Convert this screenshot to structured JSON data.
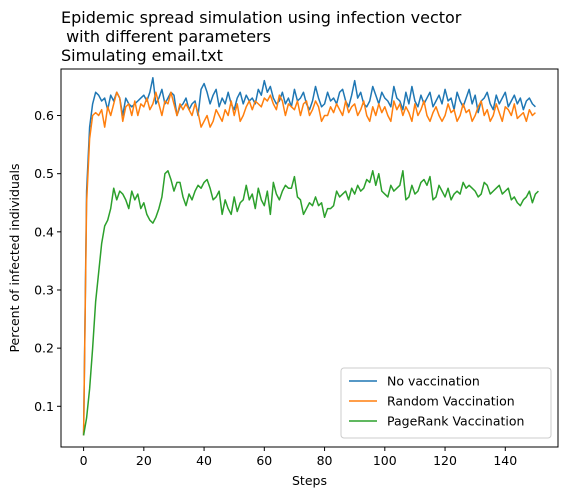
{
  "chart_data": {
    "type": "line",
    "title_lines": [
      "Epidemic spread simulation using infection vector",
      " with different parameters",
      "Simulating email.txt"
    ],
    "xlabel": "Steps",
    "ylabel": "Percent of infected individuals",
    "xlim": [
      -7.5,
      157.5
    ],
    "ylim": [
      0.03,
      0.68
    ],
    "xticks": [
      0,
      20,
      40,
      60,
      80,
      100,
      120,
      140
    ],
    "yticks": [
      0.1,
      0.2,
      0.3,
      0.4,
      0.5,
      0.6
    ],
    "grid": false,
    "legend_position": "lower-right",
    "series": [
      {
        "name": "No vaccination",
        "color": "#1f77b4",
        "values": [
          0.05,
          0.47,
          0.58,
          0.62,
          0.64,
          0.635,
          0.625,
          0.63,
          0.61,
          0.635,
          0.625,
          0.64,
          0.63,
          0.6,
          0.63,
          0.62,
          0.615,
          0.62,
          0.625,
          0.63,
          0.635,
          0.625,
          0.64,
          0.665,
          0.62,
          0.63,
          0.645,
          0.62,
          0.63,
          0.64,
          0.635,
          0.6,
          0.615,
          0.62,
          0.63,
          0.61,
          0.62,
          0.625,
          0.6,
          0.645,
          0.655,
          0.64,
          0.62,
          0.635,
          0.645,
          0.615,
          0.63,
          0.62,
          0.64,
          0.62,
          0.61,
          0.63,
          0.64,
          0.62,
          0.635,
          0.625,
          0.63,
          0.62,
          0.645,
          0.635,
          0.66,
          0.64,
          0.65,
          0.63,
          0.62,
          0.625,
          0.64,
          0.62,
          0.63,
          0.615,
          0.645,
          0.625,
          0.63,
          0.64,
          0.62,
          0.61,
          0.625,
          0.65,
          0.63,
          0.615,
          0.62,
          0.64,
          0.625,
          0.63,
          0.62,
          0.64,
          0.645,
          0.625,
          0.615,
          0.635,
          0.66,
          0.63,
          0.64,
          0.62,
          0.615,
          0.625,
          0.65,
          0.635,
          0.62,
          0.64,
          0.63,
          0.625,
          0.615,
          0.65,
          0.63,
          0.625,
          0.61,
          0.64,
          0.62,
          0.65,
          0.625,
          0.615,
          0.635,
          0.62,
          0.63,
          0.64,
          0.615,
          0.625,
          0.635,
          0.62,
          0.645,
          0.625,
          0.63,
          0.61,
          0.64,
          0.625,
          0.615,
          0.63,
          0.645,
          0.62,
          0.635,
          0.605,
          0.625,
          0.63,
          0.64,
          0.62,
          0.61,
          0.635,
          0.62,
          0.63,
          0.64,
          0.615,
          0.625,
          0.635,
          0.62,
          0.63,
          0.61,
          0.625,
          0.63,
          0.62,
          0.615
        ]
      },
      {
        "name": "Random Vaccination",
        "color": "#ff7f0e",
        "values": [
          0.05,
          0.45,
          0.56,
          0.6,
          0.605,
          0.6,
          0.61,
          0.58,
          0.615,
          0.6,
          0.62,
          0.64,
          0.63,
          0.59,
          0.615,
          0.62,
          0.6,
          0.625,
          0.6,
          0.62,
          0.615,
          0.63,
          0.61,
          0.62,
          0.64,
          0.62,
          0.6,
          0.625,
          0.62,
          0.64,
          0.62,
          0.6,
          0.62,
          0.61,
          0.62,
          0.61,
          0.6,
          0.62,
          0.605,
          0.58,
          0.59,
          0.6,
          0.58,
          0.59,
          0.61,
          0.6,
          0.59,
          0.61,
          0.6,
          0.625,
          0.6,
          0.62,
          0.59,
          0.6,
          0.615,
          0.625,
          0.61,
          0.625,
          0.62,
          0.615,
          0.63,
          0.625,
          0.635,
          0.62,
          0.61,
          0.635,
          0.625,
          0.6,
          0.62,
          0.615,
          0.61,
          0.625,
          0.6,
          0.62,
          0.625,
          0.6,
          0.61,
          0.625,
          0.615,
          0.59,
          0.6,
          0.6,
          0.615,
          0.605,
          0.62,
          0.61,
          0.6,
          0.625,
          0.605,
          0.615,
          0.62,
          0.6,
          0.61,
          0.625,
          0.6,
          0.59,
          0.615,
          0.6,
          0.62,
          0.605,
          0.615,
          0.6,
          0.59,
          0.625,
          0.61,
          0.62,
          0.6,
          0.615,
          0.605,
          0.59,
          0.62,
          0.6,
          0.61,
          0.625,
          0.6,
          0.59,
          0.605,
          0.615,
          0.6,
          0.59,
          0.6,
          0.62,
          0.605,
          0.61,
          0.59,
          0.6,
          0.62,
          0.605,
          0.61,
          0.59,
          0.6,
          0.615,
          0.625,
          0.6,
          0.61,
          0.59,
          0.6,
          0.62,
          0.605,
          0.59,
          0.615,
          0.61,
          0.6,
          0.62,
          0.595,
          0.6,
          0.605,
          0.59,
          0.61,
          0.6,
          0.605
        ]
      },
      {
        "name": "PageRank Vaccination",
        "color": "#2ca02c",
        "values": [
          0.05,
          0.08,
          0.13,
          0.2,
          0.28,
          0.33,
          0.38,
          0.41,
          0.42,
          0.44,
          0.475,
          0.455,
          0.47,
          0.465,
          0.455,
          0.44,
          0.47,
          0.455,
          0.465,
          0.44,
          0.45,
          0.43,
          0.42,
          0.415,
          0.425,
          0.44,
          0.46,
          0.5,
          0.505,
          0.49,
          0.47,
          0.485,
          0.485,
          0.46,
          0.445,
          0.465,
          0.455,
          0.47,
          0.48,
          0.475,
          0.485,
          0.49,
          0.475,
          0.455,
          0.46,
          0.47,
          0.43,
          0.455,
          0.44,
          0.43,
          0.46,
          0.435,
          0.45,
          0.455,
          0.48,
          0.455,
          0.465,
          0.44,
          0.475,
          0.455,
          0.445,
          0.47,
          0.43,
          0.485,
          0.465,
          0.455,
          0.47,
          0.48,
          0.475,
          0.475,
          0.495,
          0.46,
          0.455,
          0.43,
          0.44,
          0.45,
          0.445,
          0.46,
          0.445,
          0.45,
          0.425,
          0.44,
          0.44,
          0.445,
          0.47,
          0.46,
          0.465,
          0.47,
          0.455,
          0.475,
          0.465,
          0.48,
          0.47,
          0.475,
          0.49,
          0.485,
          0.505,
          0.48,
          0.5,
          0.47,
          0.465,
          0.46,
          0.48,
          0.47,
          0.475,
          0.48,
          0.505,
          0.455,
          0.46,
          0.48,
          0.465,
          0.47,
          0.485,
          0.49,
          0.48,
          0.495,
          0.455,
          0.46,
          0.48,
          0.47,
          0.46,
          0.475,
          0.455,
          0.465,
          0.47,
          0.465,
          0.485,
          0.475,
          0.48,
          0.475,
          0.47,
          0.46,
          0.465,
          0.485,
          0.48,
          0.465,
          0.47,
          0.475,
          0.48,
          0.465,
          0.47,
          0.475,
          0.455,
          0.46,
          0.45,
          0.445,
          0.455,
          0.46,
          0.47,
          0.45,
          0.465,
          0.47
        ]
      }
    ]
  }
}
